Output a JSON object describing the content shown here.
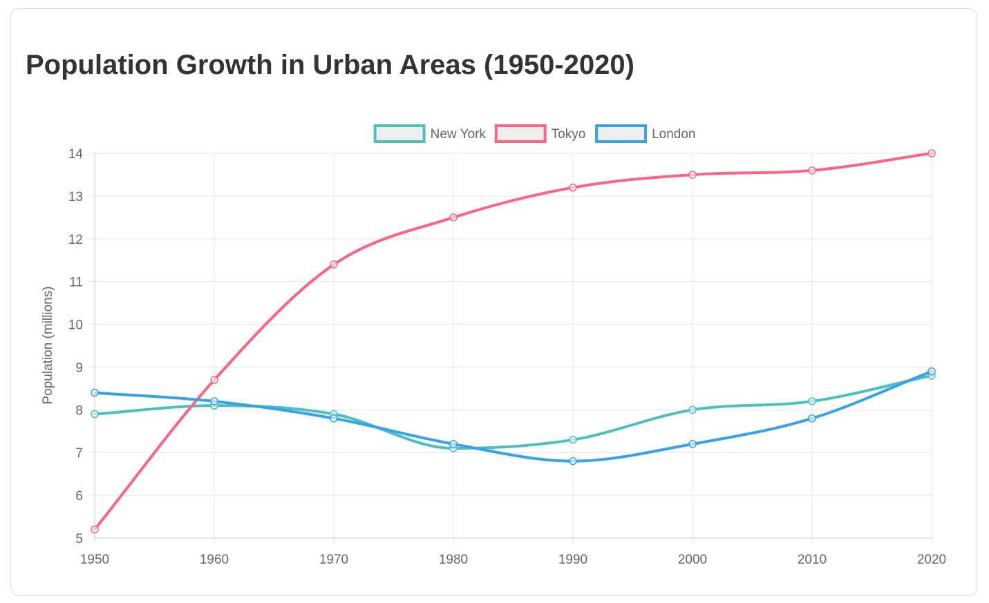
{
  "title": "Population Growth in Urban Areas (1950-2020)",
  "chart_data": {
    "type": "line",
    "title": "Population Growth in Urban Areas (1950-2020)",
    "xlabel": "",
    "ylabel": "Population (millions)",
    "categories": [
      "1950",
      "1960",
      "1970",
      "1980",
      "1990",
      "2000",
      "2010",
      "2020"
    ],
    "ylim": [
      5,
      14
    ],
    "yticks": [
      "5",
      "6",
      "7",
      "8",
      "9",
      "10",
      "11",
      "12",
      "13",
      "14"
    ],
    "grid": true,
    "legend_position": "top",
    "series": [
      {
        "name": "New York",
        "color": "#4bc0c0",
        "values": [
          7.9,
          8.1,
          7.9,
          7.1,
          7.3,
          8.0,
          8.2,
          8.8
        ]
      },
      {
        "name": "Tokyo",
        "color": "#ff6384",
        "values": [
          5.2,
          8.7,
          11.4,
          12.5,
          13.2,
          13.5,
          13.6,
          14.0
        ]
      },
      {
        "name": "London",
        "color": "#36a2eb",
        "values": [
          8.4,
          8.2,
          7.8,
          7.2,
          6.8,
          7.2,
          7.8,
          8.9
        ]
      }
    ]
  }
}
